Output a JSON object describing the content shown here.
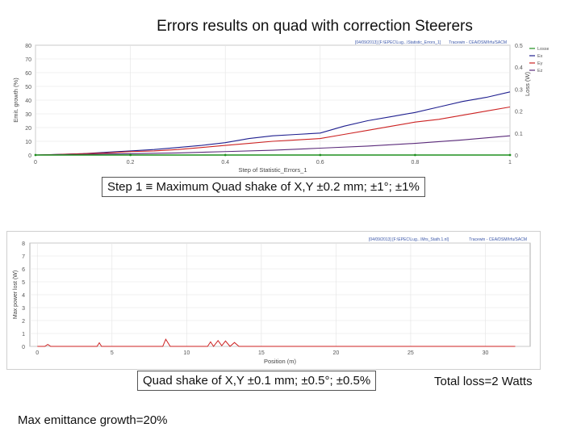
{
  "title": "Errors results on quad with correction Steerers",
  "step1_label": "Step 1 ≡ Maximum Quad shake of X,Y ±0.2 mm; ±1°; ±1%",
  "quad_label_2": "Quad shake of X,Y ±0.1 mm; ±0.5°; ±0.5%",
  "total_loss": "Total loss=2 Watts",
  "emittance": "Max emittance growth=20%",
  "chart_data": [
    {
      "type": "line",
      "header_left": "[04/09/2013] [F:\\EPEC\\Lug...\\Statistic_Errors_1]",
      "header_right": "Tracewin - CEA/DSM/Irfu/SACM",
      "xlabel": "Step of Statistic_Errors_1",
      "ylabel_left": "Emit. growth (%)",
      "ylabel_right": "Loss (W)",
      "x_ticks": [
        "0",
        "0.2",
        "0.4",
        "0.6",
        "0.8",
        "1"
      ],
      "y_ticks_left": [
        "0",
        "10",
        "20",
        "30",
        "40",
        "50",
        "60",
        "70",
        "80"
      ],
      "y_ticks_right": [
        "0",
        "0.1",
        "0.2",
        "0.3",
        "0.4",
        "0.5"
      ],
      "xlim": [
        0,
        1
      ],
      "ylim_left": [
        0,
        80
      ],
      "ylim_right": [
        0,
        0.5
      ],
      "legend": [
        "Losses",
        "Ex",
        "Ey",
        "Ez"
      ],
      "colors": {
        "Losses": "#1f8f1f",
        "Ex": "#1f1f8f",
        "Ey": "#cc2222",
        "Ez": "#5a2a7a"
      },
      "series": [
        {
          "name": "Ex",
          "axis": "left",
          "x": [
            0,
            0.05,
            0.1,
            0.15,
            0.2,
            0.25,
            0.3,
            0.35,
            0.4,
            0.45,
            0.5,
            0.55,
            0.6,
            0.65,
            0.7,
            0.75,
            0.8,
            0.85,
            0.9,
            0.95,
            1.0
          ],
          "y": [
            0,
            0.5,
            1,
            2,
            3,
            4,
            5.5,
            7,
            9,
            12,
            14,
            15,
            16,
            21,
            25,
            28,
            31,
            35,
            39,
            42,
            46
          ]
        },
        {
          "name": "Ey",
          "axis": "left",
          "x": [
            0,
            0.05,
            0.1,
            0.15,
            0.2,
            0.25,
            0.3,
            0.35,
            0.4,
            0.45,
            0.5,
            0.55,
            0.6,
            0.65,
            0.7,
            0.75,
            0.8,
            0.85,
            0.9,
            0.95,
            1.0
          ],
          "y": [
            0,
            0.4,
            1,
            1.5,
            2.5,
            3,
            4,
            5.5,
            7,
            8.5,
            10,
            11,
            12,
            15,
            18,
            21,
            24,
            26,
            29,
            32,
            35
          ]
        },
        {
          "name": "Ez",
          "axis": "left",
          "x": [
            0,
            0.1,
            0.2,
            0.3,
            0.4,
            0.5,
            0.6,
            0.7,
            0.8,
            0.9,
            1.0
          ],
          "y": [
            0,
            0.5,
            1,
            1.5,
            2.5,
            3.5,
            5,
            6.5,
            8.5,
            11,
            14
          ]
        },
        {
          "name": "Losses",
          "axis": "right",
          "x": [
            0,
            0.2,
            0.4,
            0.6,
            0.8,
            1.0
          ],
          "y": [
            0,
            0,
            0,
            0,
            0,
            0
          ]
        }
      ]
    },
    {
      "type": "line",
      "header_left": "[04/09/2013] [F:\\EPEC\\Lug...\\Mrs_Stath.1.nl]",
      "header_right": "Tracewin - CEA/DSM/Irfu/SACM",
      "xlabel": "Position (m)",
      "ylabel": "Max power lost (W)",
      "x_ticks": [
        "0",
        "5",
        "10",
        "15",
        "20",
        "25",
        "30"
      ],
      "y_ticks": [
        "0",
        "1",
        "2",
        "3",
        "4",
        "5",
        "6",
        "7",
        "8"
      ],
      "xlim": [
        -0.5,
        33
      ],
      "ylim": [
        0,
        8
      ],
      "series": [
        {
          "name": "Max power lost",
          "color": "#cc2222",
          "x": [
            0,
            0.5,
            0.7,
            0.9,
            1.5,
            4,
            4.15,
            4.3,
            8,
            8.4,
            8.6,
            8.9,
            11.4,
            11.6,
            11.8,
            12.1,
            12.35,
            12.6,
            12.9,
            13.2,
            13.5,
            32
          ],
          "y": [
            0,
            0,
            0.15,
            0,
            0,
            0,
            0.28,
            0,
            0,
            0,
            0.55,
            0,
            0,
            0.35,
            0,
            0.45,
            0.05,
            0.42,
            0,
            0.3,
            0,
            0
          ]
        }
      ]
    }
  ]
}
